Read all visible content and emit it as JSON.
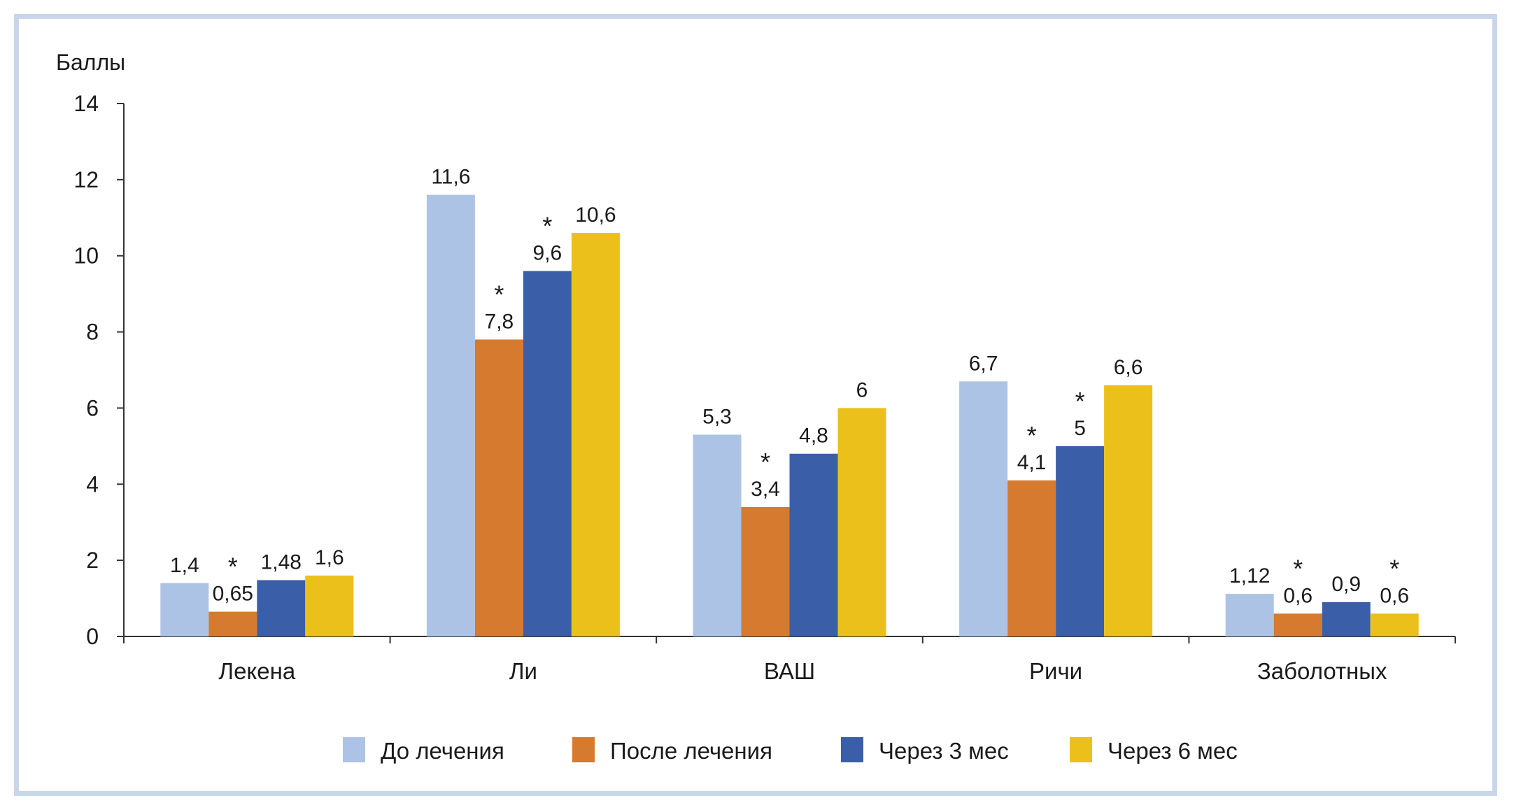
{
  "chart_data": {
    "type": "bar",
    "ylabel": "Баллы",
    "xlabel": "",
    "ylim": [
      0,
      14
    ],
    "yticks": [
      0,
      2,
      4,
      6,
      8,
      10,
      12,
      14
    ],
    "categories": [
      "Лекена",
      "Ли",
      "ВАШ",
      "Ричи",
      "Заболотных"
    ],
    "series": [
      {
        "name": "До лечения",
        "color": "#adc3e6",
        "values": [
          1.4,
          11.6,
          5.3,
          6.7,
          1.12
        ],
        "labels": [
          "1,4",
          "11,6",
          "5,3",
          "6,7",
          "1,12"
        ],
        "significant": [
          false,
          false,
          false,
          false,
          false
        ]
      },
      {
        "name": "После лечения",
        "color": "#d57a2f",
        "values": [
          0.65,
          7.8,
          3.4,
          4.1,
          0.6
        ],
        "labels": [
          "0,65",
          "7,8",
          "3,4",
          "4,1",
          "0,6"
        ],
        "significant": [
          true,
          true,
          true,
          true,
          true
        ]
      },
      {
        "name": "Через 3 мес",
        "color": "#3a5fa8",
        "values": [
          1.48,
          9.6,
          4.8,
          5,
          0.9
        ],
        "labels": [
          "1,48",
          "9,6",
          "4,8",
          "5",
          "0,9"
        ],
        "significant": [
          false,
          true,
          false,
          true,
          false
        ]
      },
      {
        "name": "Через 6 мес",
        "color": "#ecc01a",
        "values": [
          1.6,
          10.6,
          6,
          6.6,
          0.6
        ],
        "labels": [
          "1,6",
          "10,6",
          "6",
          "6,6",
          "0,6"
        ],
        "significant": [
          false,
          false,
          false,
          false,
          true
        ]
      }
    ],
    "significance_marker": "*",
    "grid": false,
    "legend_position": "bottom"
  }
}
